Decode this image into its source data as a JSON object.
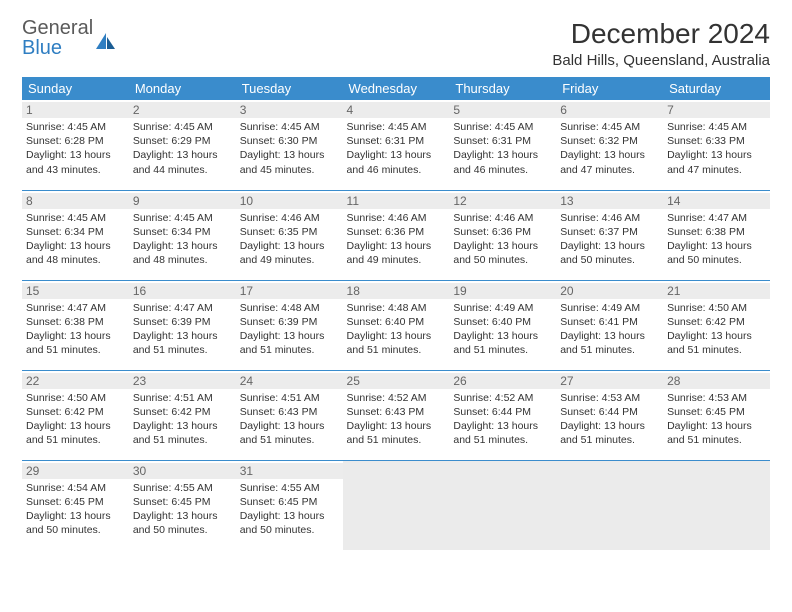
{
  "logo": {
    "text1": "General",
    "text2": "Blue"
  },
  "title": "December 2024",
  "location": "Bald Hills, Queensland, Australia",
  "colors": {
    "header_bg": "#3a8ccc",
    "header_text": "#ffffff",
    "daynum_bg": "#ececec",
    "border": "#3a8ccc",
    "logo_gray": "#5a5a5a",
    "logo_blue": "#2f7ec2",
    "body_text": "#333333",
    "empty_cell": "#ebebeb"
  },
  "day_headers": [
    "Sunday",
    "Monday",
    "Tuesday",
    "Wednesday",
    "Thursday",
    "Friday",
    "Saturday"
  ],
  "weeks": [
    [
      {
        "n": "1",
        "sunrise": "4:45 AM",
        "sunset": "6:28 PM",
        "day_h": "13",
        "day_m": "43"
      },
      {
        "n": "2",
        "sunrise": "4:45 AM",
        "sunset": "6:29 PM",
        "day_h": "13",
        "day_m": "44"
      },
      {
        "n": "3",
        "sunrise": "4:45 AM",
        "sunset": "6:30 PM",
        "day_h": "13",
        "day_m": "45"
      },
      {
        "n": "4",
        "sunrise": "4:45 AM",
        "sunset": "6:31 PM",
        "day_h": "13",
        "day_m": "46"
      },
      {
        "n": "5",
        "sunrise": "4:45 AM",
        "sunset": "6:31 PM",
        "day_h": "13",
        "day_m": "46"
      },
      {
        "n": "6",
        "sunrise": "4:45 AM",
        "sunset": "6:32 PM",
        "day_h": "13",
        "day_m": "47"
      },
      {
        "n": "7",
        "sunrise": "4:45 AM",
        "sunset": "6:33 PM",
        "day_h": "13",
        "day_m": "47"
      }
    ],
    [
      {
        "n": "8",
        "sunrise": "4:45 AM",
        "sunset": "6:34 PM",
        "day_h": "13",
        "day_m": "48"
      },
      {
        "n": "9",
        "sunrise": "4:45 AM",
        "sunset": "6:34 PM",
        "day_h": "13",
        "day_m": "48"
      },
      {
        "n": "10",
        "sunrise": "4:46 AM",
        "sunset": "6:35 PM",
        "day_h": "13",
        "day_m": "49"
      },
      {
        "n": "11",
        "sunrise": "4:46 AM",
        "sunset": "6:36 PM",
        "day_h": "13",
        "day_m": "49"
      },
      {
        "n": "12",
        "sunrise": "4:46 AM",
        "sunset": "6:36 PM",
        "day_h": "13",
        "day_m": "50"
      },
      {
        "n": "13",
        "sunrise": "4:46 AM",
        "sunset": "6:37 PM",
        "day_h": "13",
        "day_m": "50"
      },
      {
        "n": "14",
        "sunrise": "4:47 AM",
        "sunset": "6:38 PM",
        "day_h": "13",
        "day_m": "50"
      }
    ],
    [
      {
        "n": "15",
        "sunrise": "4:47 AM",
        "sunset": "6:38 PM",
        "day_h": "13",
        "day_m": "51"
      },
      {
        "n": "16",
        "sunrise": "4:47 AM",
        "sunset": "6:39 PM",
        "day_h": "13",
        "day_m": "51"
      },
      {
        "n": "17",
        "sunrise": "4:48 AM",
        "sunset": "6:39 PM",
        "day_h": "13",
        "day_m": "51"
      },
      {
        "n": "18",
        "sunrise": "4:48 AM",
        "sunset": "6:40 PM",
        "day_h": "13",
        "day_m": "51"
      },
      {
        "n": "19",
        "sunrise": "4:49 AM",
        "sunset": "6:40 PM",
        "day_h": "13",
        "day_m": "51"
      },
      {
        "n": "20",
        "sunrise": "4:49 AM",
        "sunset": "6:41 PM",
        "day_h": "13",
        "day_m": "51"
      },
      {
        "n": "21",
        "sunrise": "4:50 AM",
        "sunset": "6:42 PM",
        "day_h": "13",
        "day_m": "51"
      }
    ],
    [
      {
        "n": "22",
        "sunrise": "4:50 AM",
        "sunset": "6:42 PM",
        "day_h": "13",
        "day_m": "51"
      },
      {
        "n": "23",
        "sunrise": "4:51 AM",
        "sunset": "6:42 PM",
        "day_h": "13",
        "day_m": "51"
      },
      {
        "n": "24",
        "sunrise": "4:51 AM",
        "sunset": "6:43 PM",
        "day_h": "13",
        "day_m": "51"
      },
      {
        "n": "25",
        "sunrise": "4:52 AM",
        "sunset": "6:43 PM",
        "day_h": "13",
        "day_m": "51"
      },
      {
        "n": "26",
        "sunrise": "4:52 AM",
        "sunset": "6:44 PM",
        "day_h": "13",
        "day_m": "51"
      },
      {
        "n": "27",
        "sunrise": "4:53 AM",
        "sunset": "6:44 PM",
        "day_h": "13",
        "day_m": "51"
      },
      {
        "n": "28",
        "sunrise": "4:53 AM",
        "sunset": "6:45 PM",
        "day_h": "13",
        "day_m": "51"
      }
    ],
    [
      {
        "n": "29",
        "sunrise": "4:54 AM",
        "sunset": "6:45 PM",
        "day_h": "13",
        "day_m": "50"
      },
      {
        "n": "30",
        "sunrise": "4:55 AM",
        "sunset": "6:45 PM",
        "day_h": "13",
        "day_m": "50"
      },
      {
        "n": "31",
        "sunrise": "4:55 AM",
        "sunset": "6:45 PM",
        "day_h": "13",
        "day_m": "50"
      },
      null,
      null,
      null,
      null
    ]
  ],
  "labels": {
    "sunrise": "Sunrise:",
    "sunset": "Sunset:",
    "daylight_prefix": "Daylight:",
    "hours_word": "hours",
    "and_word": "and",
    "minutes_word": "minutes."
  }
}
